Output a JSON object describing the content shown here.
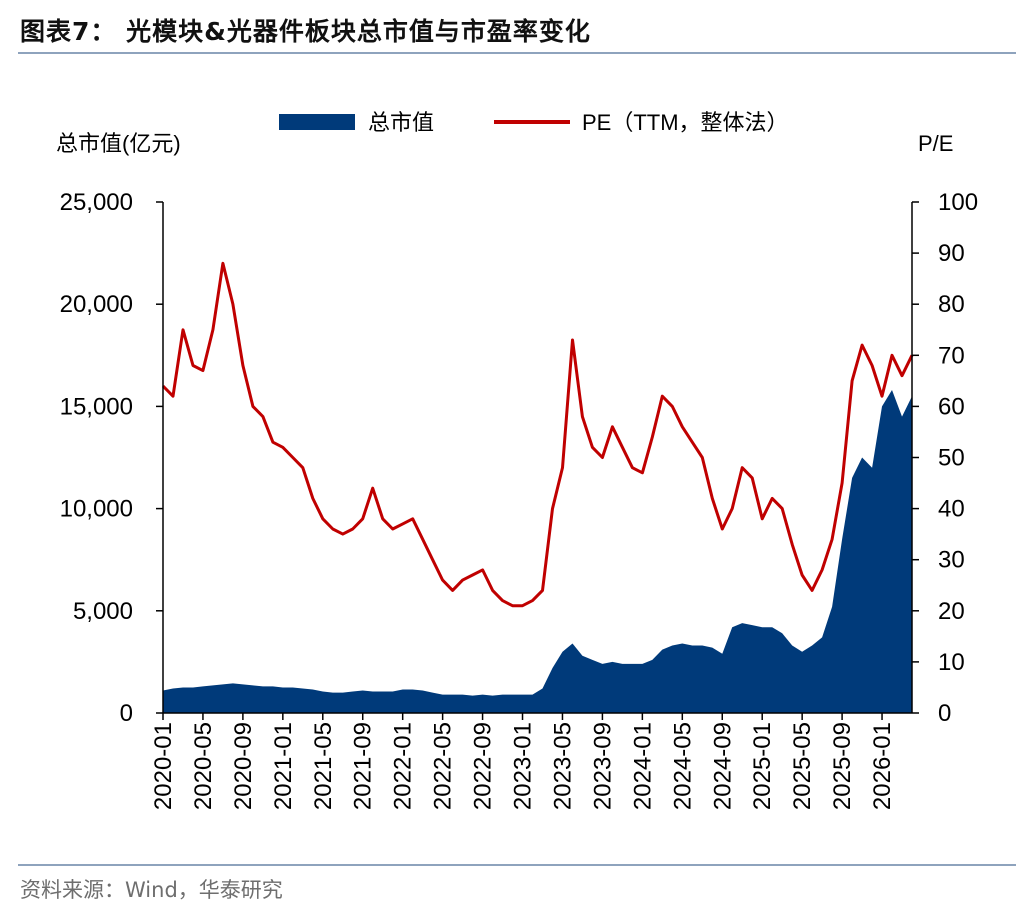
{
  "figure": {
    "title": "图表7： 光模块&光器件板块总市值与市盈率变化",
    "source": "资料来源：Wind，华泰研究"
  },
  "chart_data": {
    "type": "area",
    "combo": "area + line, dual y-axis",
    "legend": {
      "placement": "top-center",
      "entries": [
        "总市值",
        "PE（TTM，整体法）"
      ]
    },
    "y_left": {
      "label": "总市值(亿元)",
      "lim": [
        0,
        25000
      ],
      "ticks": [
        0,
        5000,
        10000,
        15000,
        20000,
        25000
      ],
      "tick_labels": [
        "0",
        "5,000",
        "10,000",
        "15,000",
        "20,000",
        "25,000"
      ]
    },
    "y_right": {
      "label": "P/E",
      "lim": [
        0,
        100
      ],
      "ticks": [
        0,
        10,
        20,
        30,
        40,
        50,
        60,
        70,
        80,
        90,
        100
      ],
      "tick_labels": [
        "0",
        "10",
        "20",
        "30",
        "40",
        "50",
        "60",
        "70",
        "80",
        "90",
        "100"
      ]
    },
    "x": {
      "lim": [
        "2020-01",
        "2026-04"
      ],
      "tick_labels": [
        "2020-01",
        "2020-05",
        "2020-09",
        "2021-01",
        "2021-05",
        "2021-09",
        "2022-01",
        "2022-05",
        "2022-09",
        "2023-01",
        "2023-05",
        "2023-09",
        "2024-01",
        "2024-05",
        "2024-09",
        "2025-01",
        "2025-05",
        "2025-09",
        "2026-01"
      ]
    },
    "grid": false,
    "series": [
      {
        "name": "总市值",
        "axis": "left",
        "color": "#003a7a",
        "x": [
          "2020-01",
          "2020-02",
          "2020-03",
          "2020-04",
          "2020-05",
          "2020-06",
          "2020-07",
          "2020-08",
          "2020-09",
          "2020-10",
          "2020-11",
          "2020-12",
          "2021-01",
          "2021-02",
          "2021-03",
          "2021-04",
          "2021-05",
          "2021-06",
          "2021-07",
          "2021-08",
          "2021-09",
          "2021-10",
          "2021-11",
          "2021-12",
          "2022-01",
          "2022-02",
          "2022-03",
          "2022-04",
          "2022-05",
          "2022-06",
          "2022-07",
          "2022-08",
          "2022-09",
          "2022-10",
          "2022-11",
          "2022-12",
          "2023-01",
          "2023-02",
          "2023-03",
          "2023-04",
          "2023-05",
          "2023-06",
          "2023-07",
          "2023-08",
          "2023-09",
          "2023-10",
          "2023-11",
          "2023-12",
          "2024-01",
          "2024-02",
          "2024-03",
          "2024-04",
          "2024-05",
          "2024-06",
          "2024-07",
          "2024-08",
          "2024-09",
          "2024-10",
          "2024-11",
          "2024-12",
          "2025-01",
          "2025-02",
          "2025-03",
          "2025-04",
          "2025-05",
          "2025-06",
          "2025-07",
          "2025-08",
          "2025-09",
          "2025-10",
          "2025-11",
          "2025-12",
          "2026-01",
          "2026-02",
          "2026-03",
          "2026-04"
        ],
        "values": [
          1100,
          1200,
          1250,
          1250,
          1300,
          1350,
          1400,
          1450,
          1400,
          1350,
          1300,
          1300,
          1250,
          1250,
          1200,
          1150,
          1050,
          1000,
          1000,
          1050,
          1100,
          1050,
          1050,
          1050,
          1150,
          1150,
          1100,
          1000,
          900,
          900,
          900,
          850,
          900,
          850,
          900,
          900,
          900,
          900,
          1200,
          2200,
          3000,
          3400,
          2800,
          2600,
          2400,
          2500,
          2400,
          2400,
          2400,
          2600,
          3100,
          3300,
          3400,
          3300,
          3300,
          3200,
          2900,
          4200,
          4400,
          4300,
          4200,
          4200,
          3900,
          3300,
          3000,
          3300,
          3700,
          5200,
          8500,
          11500,
          12500,
          12000,
          15000,
          15800,
          14500,
          15500
        ]
      },
      {
        "name": "PE（TTM，整体法）",
        "axis": "right",
        "color": "#c00000",
        "x": [
          "2020-01",
          "2020-02",
          "2020-03",
          "2020-04",
          "2020-05",
          "2020-06",
          "2020-07",
          "2020-08",
          "2020-09",
          "2020-10",
          "2020-11",
          "2020-12",
          "2021-01",
          "2021-02",
          "2021-03",
          "2021-04",
          "2021-05",
          "2021-06",
          "2021-07",
          "2021-08",
          "2021-09",
          "2021-10",
          "2021-11",
          "2021-12",
          "2022-01",
          "2022-02",
          "2022-03",
          "2022-04",
          "2022-05",
          "2022-06",
          "2022-07",
          "2022-08",
          "2022-09",
          "2022-10",
          "2022-11",
          "2022-12",
          "2023-01",
          "2023-02",
          "2023-03",
          "2023-04",
          "2023-05",
          "2023-06",
          "2023-07",
          "2023-08",
          "2023-09",
          "2023-10",
          "2023-11",
          "2023-12",
          "2024-01",
          "2024-02",
          "2024-03",
          "2024-04",
          "2024-05",
          "2024-06",
          "2024-07",
          "2024-08",
          "2024-09",
          "2024-10",
          "2024-11",
          "2024-12",
          "2025-01",
          "2025-02",
          "2025-03",
          "2025-04",
          "2025-05",
          "2025-06",
          "2025-07",
          "2025-08",
          "2025-09",
          "2025-10",
          "2025-11",
          "2025-12",
          "2026-01",
          "2026-02",
          "2026-03",
          "2026-04"
        ],
        "values": [
          64,
          62,
          75,
          68,
          67,
          75,
          88,
          80,
          68,
          60,
          58,
          53,
          52,
          50,
          48,
          42,
          38,
          36,
          35,
          36,
          38,
          44,
          38,
          36,
          37,
          38,
          34,
          30,
          26,
          24,
          26,
          27,
          28,
          24,
          22,
          21,
          21,
          22,
          24,
          40,
          48,
          73,
          58,
          52,
          50,
          56,
          52,
          48,
          47,
          54,
          62,
          60,
          56,
          53,
          50,
          42,
          36,
          40,
          48,
          46,
          38,
          42,
          40,
          33,
          27,
          24,
          28,
          34,
          45,
          65,
          72,
          68,
          62,
          70,
          66,
          70
        ]
      }
    ]
  }
}
